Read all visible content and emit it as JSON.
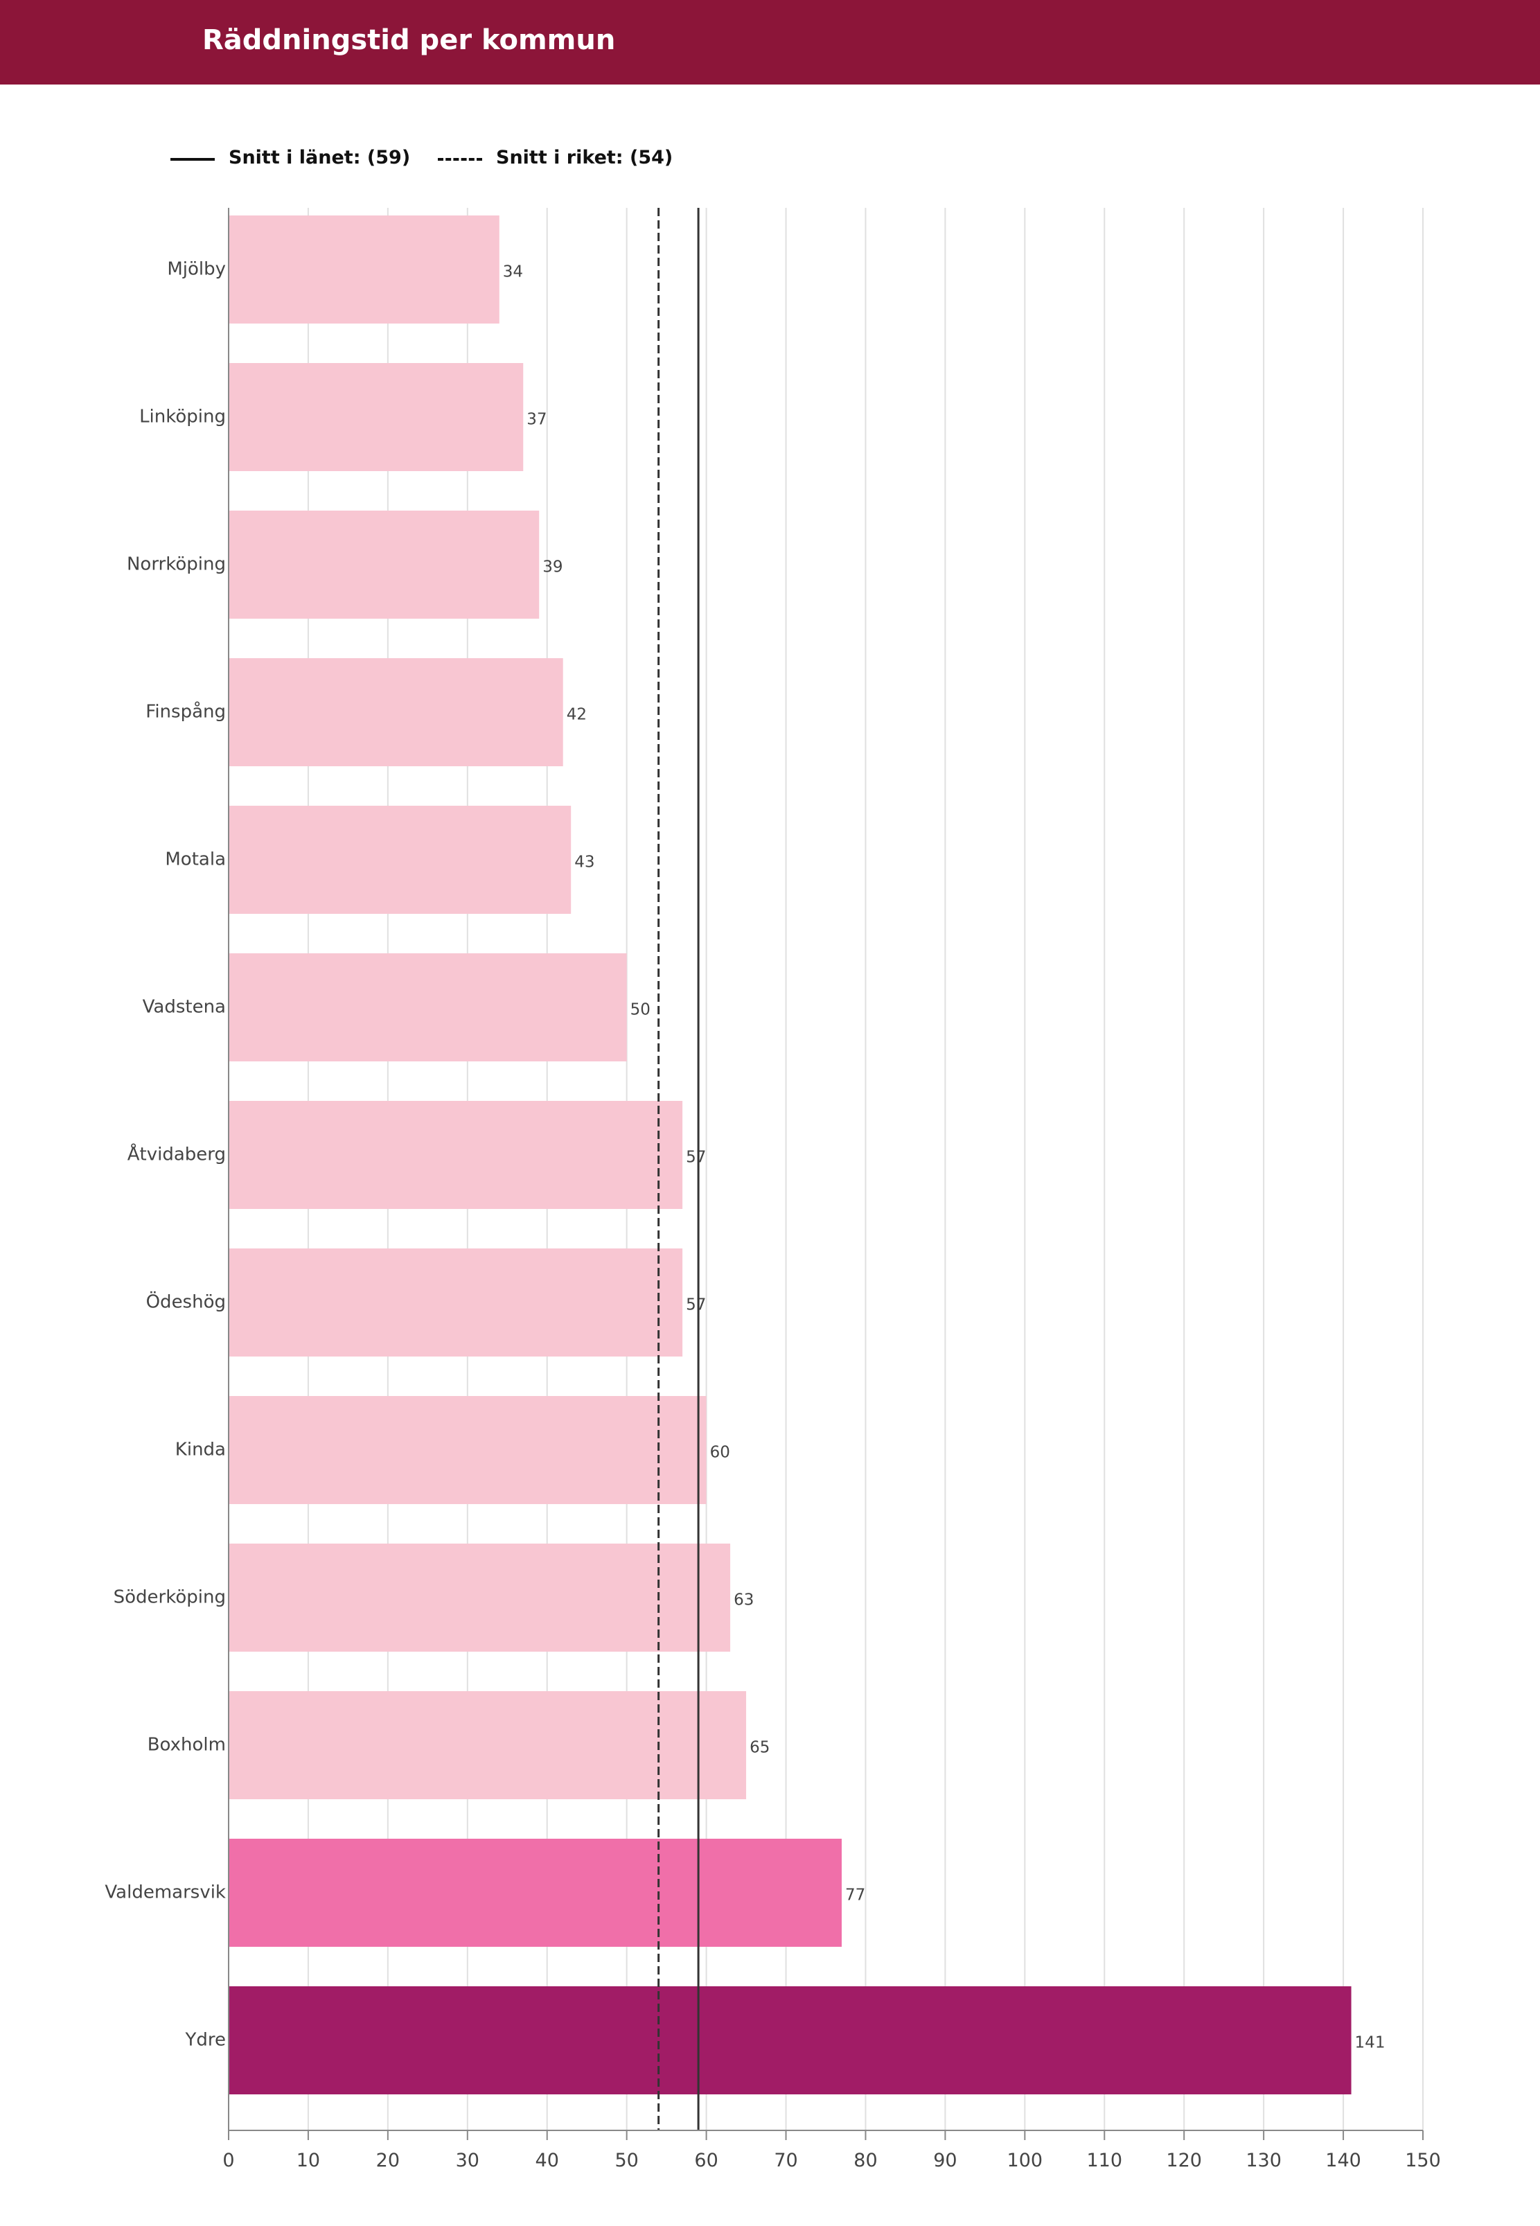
{
  "header": {
    "title": "Räddningstid per kommun",
    "background_color": "#8c1539"
  },
  "legend": {
    "lan_label": "Snitt i länet: (59)",
    "riket_label": "Snitt i riket: (54)"
  },
  "chart_data": {
    "type": "bar",
    "orientation": "horizontal",
    "title": "Räddningstid per kommun",
    "xlabel": "",
    "ylabel": "",
    "xlim": [
      0,
      150
    ],
    "x_ticks": [
      0,
      10,
      20,
      30,
      40,
      50,
      60,
      70,
      80,
      90,
      100,
      110,
      120,
      130,
      140,
      150
    ],
    "grid": true,
    "categories": [
      "Mjölby",
      "Linköping",
      "Norrköping",
      "Finspång",
      "Motala",
      "Vadstena",
      "Åtvidaberg",
      "Ödeshög",
      "Kinda",
      "Söderköping",
      "Boxholm",
      "Valdemarsvik",
      "Ydre"
    ],
    "values": [
      34,
      37,
      39,
      42,
      43,
      50,
      57,
      57,
      60,
      63,
      65,
      77,
      141
    ],
    "bar_colors": [
      "#f8c6d2",
      "#f8c6d2",
      "#f8c6d2",
      "#f8c6d2",
      "#f8c6d2",
      "#f8c6d2",
      "#f8c6d2",
      "#f8c6d2",
      "#f8c6d2",
      "#f8c6d2",
      "#f8c6d2",
      "#f06fa9",
      "#a11c66"
    ],
    "reference_lines": [
      {
        "name": "Snitt i länet",
        "value": 59,
        "style": "solid",
        "color": "#333333"
      },
      {
        "name": "Snitt i riket",
        "value": 54,
        "style": "dashed",
        "color": "#333333"
      }
    ]
  }
}
